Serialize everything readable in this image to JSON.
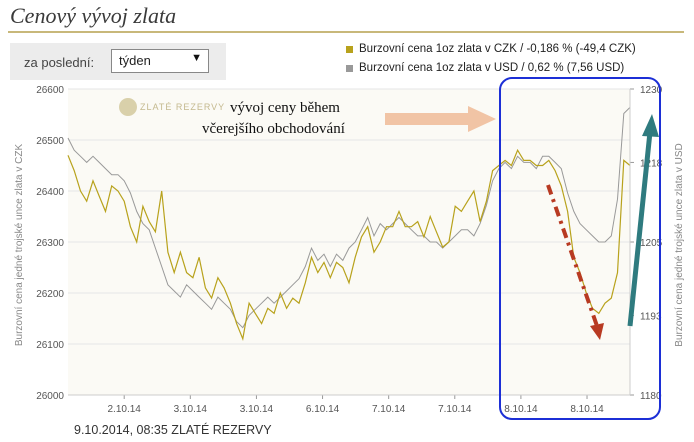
{
  "page": {
    "title": "Cenový vývoj zlata",
    "period_label": "za poslední:",
    "period_value": "týden",
    "footer": "9.10.2014, 08:35 ZLATÉ REZERVY",
    "watermark": "ZLATÉ REZERVY"
  },
  "chart_data": {
    "type": "line",
    "left_axis": {
      "label": "Burzovní cena jedné trojské unce zlata v CZK",
      "ylim": [
        26000,
        26600
      ],
      "ticks": [
        26000,
        26100,
        26200,
        26300,
        26400,
        26500,
        26600
      ]
    },
    "right_axis": {
      "label": "Burzovní cena jedné trojské unce zlata v USD",
      "ylim": [
        1180,
        1230
      ],
      "ticks": [
        1180,
        1193,
        1205,
        1218,
        1230
      ]
    },
    "x_ticks": [
      "2.10.14",
      "3.10.14",
      "3.10.14",
      "6.10.14",
      "7.10.14",
      "7.10.14",
      "8.10.14",
      "8.10.14"
    ],
    "series": [
      {
        "name": "Burzovní cena 1oz zlata v CZK / -0,186 % (-49,4 CZK)",
        "color": "#b8a21c",
        "axis": "left",
        "values": [
          26470,
          26440,
          26400,
          26380,
          26420,
          26390,
          26360,
          26410,
          26400,
          26380,
          26330,
          26300,
          26370,
          26340,
          26320,
          26400,
          26280,
          26240,
          26280,
          26240,
          26230,
          26270,
          26210,
          26190,
          26230,
          26210,
          26180,
          26140,
          26110,
          26180,
          26160,
          26140,
          26170,
          26160,
          26200,
          26170,
          26190,
          26180,
          26220,
          26270,
          26240,
          26260,
          26230,
          26260,
          26250,
          26220,
          26270,
          26310,
          26330,
          26280,
          26300,
          26330,
          26330,
          26360,
          26330,
          26330,
          26340,
          26310,
          26350,
          26320,
          26290,
          26300,
          26370,
          26360,
          26380,
          26400,
          26340,
          26380,
          26440,
          26450,
          26460,
          26450,
          26480,
          26460,
          26460,
          26450,
          26450,
          26460,
          26440,
          26410,
          26360,
          26270,
          26240,
          26200,
          26170,
          26160,
          26180,
          26190,
          26240,
          26460,
          26450
        ]
      },
      {
        "name": "Burzovní cena 1oz zlata v USD / 0,62 % (7,56 USD)",
        "color": "#999999",
        "axis": "right",
        "values": [
          1222,
          1220,
          1219,
          1218,
          1219,
          1218,
          1217,
          1216,
          1216,
          1215,
          1213,
          1210,
          1208,
          1207,
          1204,
          1201,
          1198,
          1197,
          1196,
          1198,
          1197,
          1196,
          1195,
          1194,
          1196,
          1195,
          1194,
          1192,
          1191,
          1193,
          1194,
          1195,
          1196,
          1195,
          1196,
          1197,
          1198,
          1199,
          1201,
          1204,
          1202,
          1203,
          1201,
          1203,
          1202,
          1204,
          1205,
          1207,
          1209,
          1206,
          1208,
          1207,
          1208,
          1209,
          1208,
          1207,
          1206,
          1206,
          1205,
          1205,
          1204,
          1205,
          1206,
          1207,
          1207,
          1206,
          1208,
          1211,
          1215,
          1217,
          1218,
          1217,
          1219,
          1218,
          1218,
          1217,
          1219,
          1219,
          1218,
          1217,
          1213,
          1210,
          1208,
          1207,
          1206,
          1205,
          1205,
          1206,
          1212,
          1226,
          1227
        ]
      }
    ],
    "annotations": {
      "text_line1": "vývoj ceny během",
      "text_line2": "včerejšího obchodování"
    },
    "grid": true,
    "legend_position": "top-right"
  },
  "colors": {
    "czk": "#b8a21c",
    "usd": "#999999",
    "highlight": "#1c2fd6",
    "arrow_red": "#b83a22",
    "arrow_teal": "#2f7b7f",
    "arrow_peach": "#f1c4a5"
  }
}
